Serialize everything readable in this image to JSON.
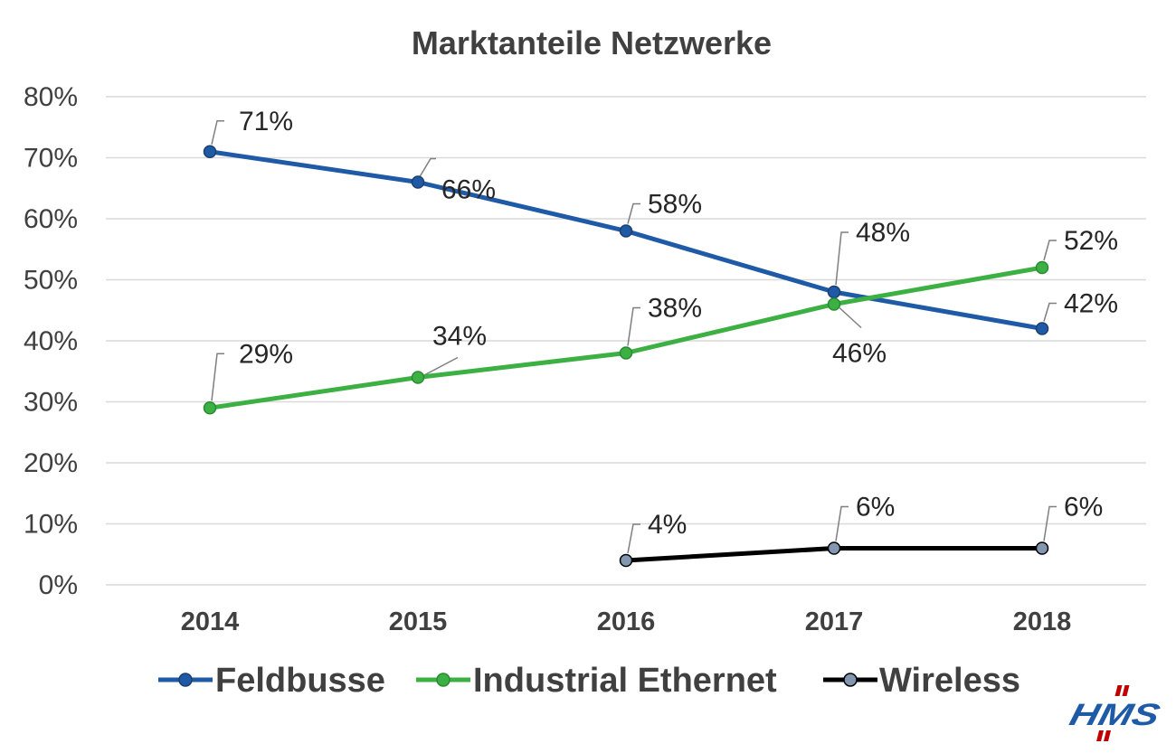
{
  "colors": {
    "Feldbusse": "#1f5aa6",
    "Industrial Ethernet": "#3cb043",
    "Wireless": "#000000",
    "wireless_marker": "#8497b0",
    "hms_logo": "#1f5aa6",
    "hms_slashes": "#c00000"
  },
  "logo": {
    "text": "HMS",
    "icon": "hms-logo"
  },
  "chart_data": {
    "type": "line",
    "title": "Marktanteile Netzwerke",
    "categories": [
      "2014",
      "2015",
      "2016",
      "2017",
      "2018"
    ],
    "ylim": [
      0,
      80
    ],
    "yticks": [
      0,
      10,
      20,
      30,
      40,
      50,
      60,
      70,
      80
    ],
    "ytick_labels": [
      "0%",
      "10%",
      "20%",
      "30%",
      "40%",
      "50%",
      "60%",
      "70%",
      "80%"
    ],
    "grid": true,
    "legend_position": "bottom",
    "series": [
      {
        "name": "Feldbusse",
        "values": [
          71,
          66,
          58,
          48,
          42
        ],
        "labels": [
          "71%",
          "66%",
          "58%",
          "48%",
          "42%"
        ]
      },
      {
        "name": "Industrial Ethernet",
        "values": [
          29,
          34,
          38,
          46,
          52
        ],
        "labels": [
          "29%",
          "34%",
          "38%",
          "46%",
          "52%"
        ]
      },
      {
        "name": "Wireless",
        "values": [
          null,
          null,
          4,
          6,
          6
        ],
        "labels": [
          "",
          "",
          "4%",
          "6%",
          "6%"
        ]
      }
    ]
  }
}
